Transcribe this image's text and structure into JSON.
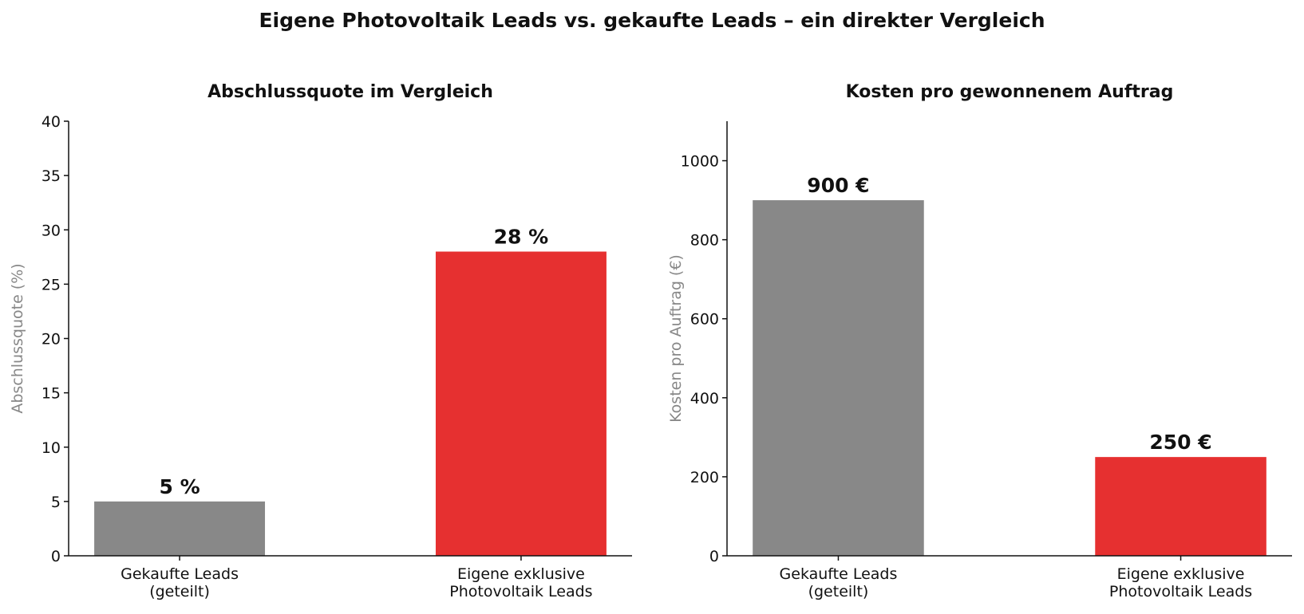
{
  "title": "Eigene Photovoltaik Leads vs. gekaufte Leads – ein direkter Vergleich",
  "chart_data": [
    {
      "type": "bar",
      "title": "Abschlussquote im Vergleich",
      "ylabel": "Abschlussquote (%)",
      "categories": [
        "Gekaufte Leads\n(geteilt)",
        "Eigene exklusive\nPhotovoltaik Leads"
      ],
      "values": [
        5,
        28
      ],
      "value_labels": [
        "5 %",
        "28 %"
      ],
      "colors": [
        "#888888",
        "#e63030"
      ],
      "ylim": [
        0,
        40
      ],
      "yticks": [
        0,
        5,
        10,
        15,
        20,
        25,
        30,
        35,
        40
      ],
      "grid": false
    },
    {
      "type": "bar",
      "title": "Kosten pro gewonnenem Auftrag",
      "ylabel": "Kosten pro Auftrag (€)",
      "categories": [
        "Gekaufte Leads\n(geteilt)",
        "Eigene exklusive\nPhotovoltaik Leads"
      ],
      "values": [
        900,
        250
      ],
      "value_labels": [
        "900 €",
        "250 €"
      ],
      "colors": [
        "#888888",
        "#e63030"
      ],
      "ylim": [
        0,
        1100
      ],
      "yticks": [
        0,
        200,
        400,
        600,
        800,
        1000
      ],
      "grid": false
    }
  ]
}
